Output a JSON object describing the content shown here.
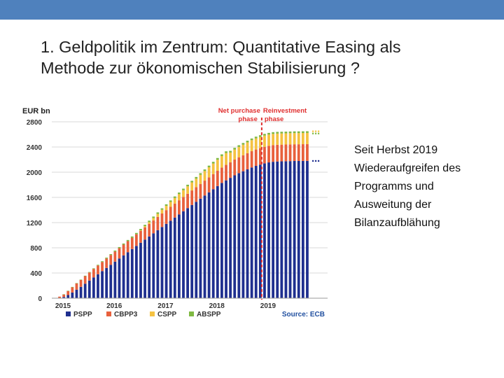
{
  "slide": {
    "title_line1": "1. Geldpolitik im Zentrum: Quantitative Easing als",
    "title_line2": "Methode zur ökonomischen Stabilisierung ?",
    "side_text": [
      "Seit Herbst 2019",
      "Wiederaufgreifen des",
      "Programms und",
      "Ausweitung der",
      "Bilanzaufblähung"
    ],
    "colors": {
      "top_bar": "#4f81bd"
    }
  },
  "chart_data": {
    "type": "bar",
    "stacked": true,
    "ylabel": "EUR bn",
    "ylim": [
      0,
      2800
    ],
    "yticks": [
      0,
      400,
      800,
      1200,
      1600,
      2000,
      2400,
      2800
    ],
    "year_labels": [
      "2015",
      "2016",
      "2017",
      "2018",
      "2019"
    ],
    "grid": true,
    "legend_position": "bottom",
    "source": "Source: ECB",
    "phase_labels": {
      "left_line1": "Net purchase",
      "left_line2": "phase",
      "right_line1": "Reinvestment",
      "right_line2": "phase"
    },
    "series": [
      {
        "name": "PSPP",
        "color": "#1f2f8f",
        "values": [
          5,
          20,
          50,
          90,
          135,
          180,
          230,
          280,
          330,
          380,
          430,
          480,
          530,
          580,
          630,
          680,
          730,
          780,
          830,
          880,
          930,
          980,
          1030,
          1080,
          1130,
          1180,
          1230,
          1280,
          1330,
          1380,
          1430,
          1480,
          1530,
          1580,
          1630,
          1680,
          1730,
          1780,
          1830,
          1870,
          1910,
          1950,
          1985,
          2015,
          2045,
          2075,
          2100,
          2120,
          2140,
          2155,
          2165,
          2170,
          2172,
          2174,
          2176,
          2178,
          2178,
          2179,
          2180
        ]
      },
      {
        "name": "CBPP3",
        "color": "#e8603c",
        "values": [
          20,
          40,
          65,
          85,
          100,
          110,
          120,
          128,
          135,
          140,
          145,
          150,
          155,
          160,
          165,
          170,
          175,
          180,
          185,
          190,
          195,
          200,
          205,
          210,
          215,
          218,
          220,
          222,
          224,
          226,
          228,
          230,
          232,
          234,
          236,
          238,
          240,
          242,
          244,
          246,
          248,
          250,
          252,
          254,
          256,
          258,
          260,
          262,
          263,
          264,
          265,
          265,
          265,
          265,
          265,
          265,
          265,
          265,
          265
        ]
      },
      {
        "name": "CSPP",
        "color": "#f5c242",
        "values": [
          0,
          0,
          0,
          0,
          0,
          0,
          0,
          0,
          0,
          0,
          0,
          0,
          0,
          0,
          0,
          0,
          0,
          0,
          0,
          8,
          18,
          28,
          38,
          48,
          58,
          68,
          78,
          88,
          98,
          108,
          118,
          128,
          136,
          144,
          152,
          160,
          168,
          176,
          182,
          188,
          154,
          160,
          164,
          168,
          172,
          175,
          177,
          178,
          178,
          178,
          178,
          178,
          178,
          178,
          178,
          178,
          178,
          178,
          178
        ]
      },
      {
        "name": "ABSPP",
        "color": "#7fb942",
        "values": [
          0,
          2,
          3,
          4,
          5,
          6,
          7,
          8,
          9,
          10,
          12,
          14,
          15,
          16,
          17,
          18,
          19,
          20,
          21,
          22,
          22,
          23,
          23,
          24,
          24,
          24,
          24,
          25,
          25,
          25,
          25,
          25,
          26,
          26,
          26,
          26,
          27,
          27,
          27,
          27,
          27,
          27,
          27,
          27,
          27,
          27,
          27,
          27,
          27,
          27,
          27,
          27,
          27,
          27,
          27,
          27,
          27,
          27,
          27
        ]
      }
    ]
  }
}
